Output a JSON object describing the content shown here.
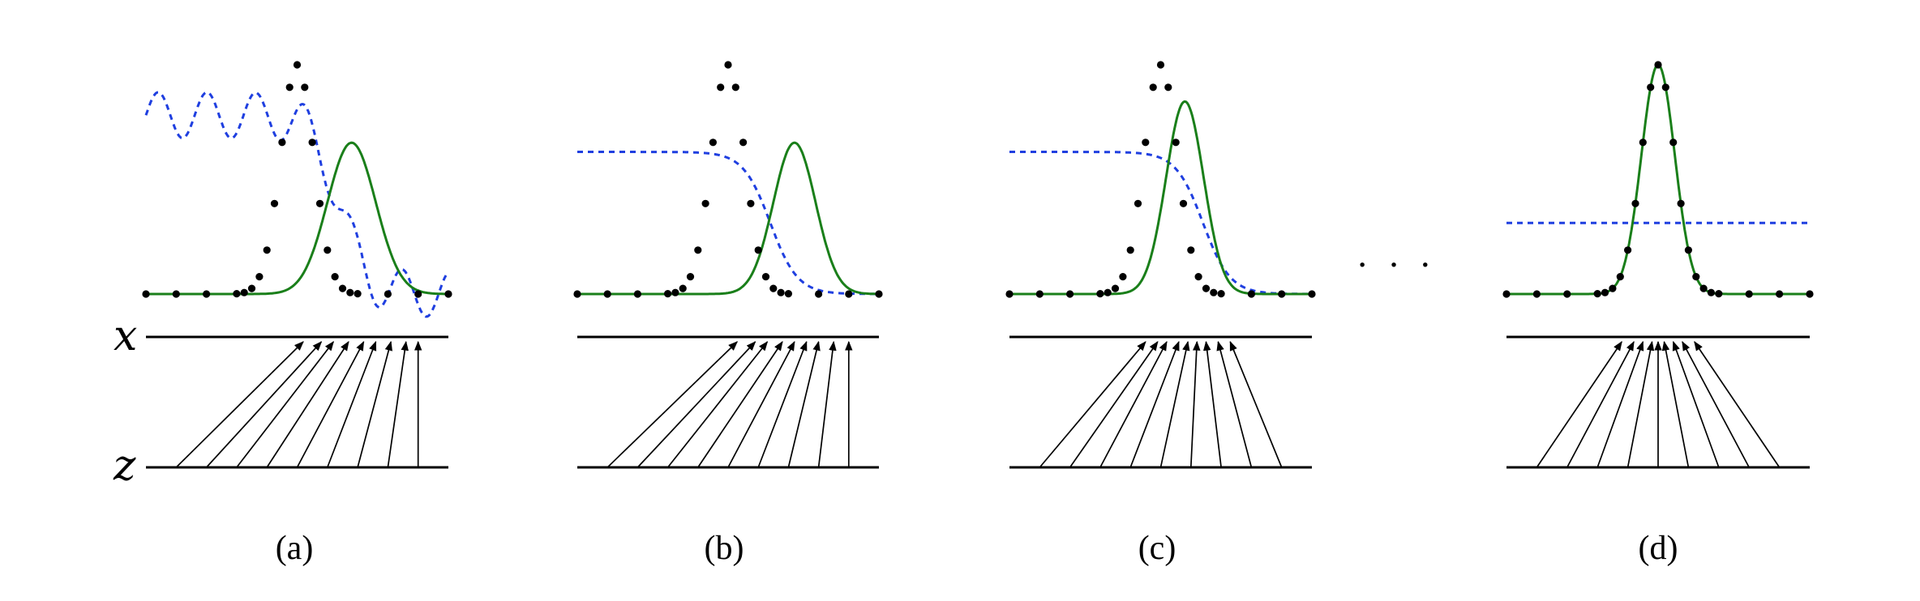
{
  "figure": {
    "x_label": "x",
    "z_label": "z",
    "ellipsis": "· · ·",
    "colors": {
      "data_dots": "#000000",
      "generator_curve": "#1a7f1a",
      "discriminator_curve": "#1f3fe0",
      "mapping_arrows": "#000000"
    },
    "panels": [
      {
        "label": "(a)",
        "discriminator": {
          "shape": "noisy-sigmoid",
          "left_level": 0.78,
          "right_level": 0.0,
          "ripple": true
        },
        "generator": {
          "mean": 0.68,
          "std": 0.08,
          "peak": 0.66
        },
        "data": {
          "mean": 0.5,
          "std": 0.055
        },
        "arrows": [
          {
            "z": 0.1,
            "x": 0.52
          },
          {
            "z": 0.2,
            "x": 0.58
          },
          {
            "z": 0.3,
            "x": 0.62
          },
          {
            "z": 0.4,
            "x": 0.67
          },
          {
            "z": 0.5,
            "x": 0.72
          },
          {
            "z": 0.6,
            "x": 0.76
          },
          {
            "z": 0.7,
            "x": 0.81
          },
          {
            "z": 0.8,
            "x": 0.86
          },
          {
            "z": 0.9,
            "x": 0.9
          }
        ]
      },
      {
        "label": "(b)",
        "discriminator": {
          "shape": "sigmoid",
          "left_level": 0.62,
          "right_level": 0.0,
          "ripple": false
        },
        "generator": {
          "mean": 0.72,
          "std": 0.07,
          "peak": 0.66
        },
        "data": {
          "mean": 0.5,
          "std": 0.055
        },
        "arrows": [
          {
            "z": 0.1,
            "x": 0.53
          },
          {
            "z": 0.2,
            "x": 0.59
          },
          {
            "z": 0.3,
            "x": 0.63
          },
          {
            "z": 0.4,
            "x": 0.68
          },
          {
            "z": 0.5,
            "x": 0.72
          },
          {
            "z": 0.6,
            "x": 0.76
          },
          {
            "z": 0.7,
            "x": 0.8
          },
          {
            "z": 0.8,
            "x": 0.85
          },
          {
            "z": 0.9,
            "x": 0.9
          }
        ]
      },
      {
        "label": "(c)",
        "discriminator": {
          "shape": "sigmoid",
          "left_level": 0.62,
          "right_level": 0.0,
          "ripple": false
        },
        "generator": {
          "mean": 0.58,
          "std": 0.062,
          "peak": 0.84
        },
        "data": {
          "mean": 0.5,
          "std": 0.055
        },
        "arrows": [
          {
            "z": 0.1,
            "x": 0.45
          },
          {
            "z": 0.2,
            "x": 0.49
          },
          {
            "z": 0.3,
            "x": 0.52
          },
          {
            "z": 0.4,
            "x": 0.56
          },
          {
            "z": 0.5,
            "x": 0.59
          },
          {
            "z": 0.6,
            "x": 0.62
          },
          {
            "z": 0.7,
            "x": 0.65
          },
          {
            "z": 0.8,
            "x": 0.69
          },
          {
            "z": 0.9,
            "x": 0.73
          }
        ]
      },
      {
        "label": "(d)",
        "discriminator": {
          "shape": "flat",
          "left_level": 0.31,
          "right_level": 0.31,
          "ripple": false
        },
        "generator": {
          "mean": 0.5,
          "std": 0.055,
          "peak": 1.0
        },
        "data": {
          "mean": 0.5,
          "std": 0.055
        },
        "arrows": [
          {
            "z": 0.1,
            "x": 0.38
          },
          {
            "z": 0.2,
            "x": 0.42
          },
          {
            "z": 0.3,
            "x": 0.45
          },
          {
            "z": 0.4,
            "x": 0.48
          },
          {
            "z": 0.5,
            "x": 0.5
          },
          {
            "z": 0.6,
            "x": 0.52
          },
          {
            "z": 0.7,
            "x": 0.55
          },
          {
            "z": 0.8,
            "x": 0.58
          },
          {
            "z": 0.9,
            "x": 0.62
          }
        ]
      }
    ]
  }
}
